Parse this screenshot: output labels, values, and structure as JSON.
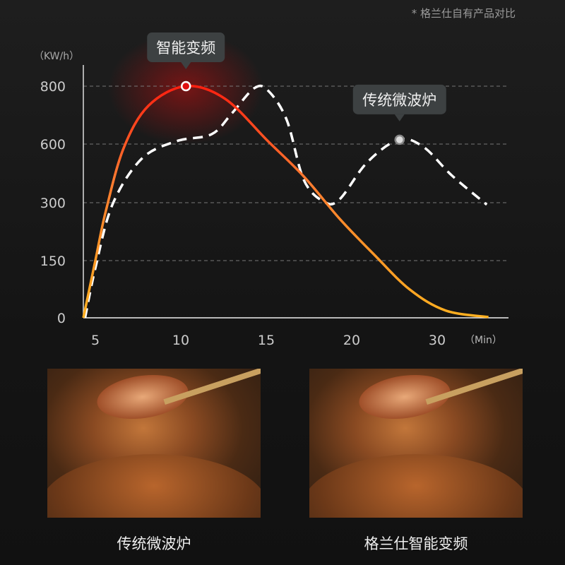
{
  "note": "* 格兰仕自有产品对比",
  "chart_data": {
    "type": "line",
    "ylabel": "（KW/h）",
    "xlabel": "（Min）",
    "y_ticks": [
      0,
      150,
      300,
      600,
      800
    ],
    "x_ticks": [
      5,
      10,
      15,
      20,
      30
    ],
    "grid": "horizontal dashed",
    "series": [
      {
        "name": "智能变频",
        "style": "solid gradient red-orange",
        "color": "#ff3a1a",
        "points": [
          [
            4.3,
            0
          ],
          [
            5,
            150
          ],
          [
            5.6,
            276
          ],
          [
            6.65,
            578
          ],
          [
            8.1,
            732
          ],
          [
            10.3,
            800
          ],
          [
            12.6,
            756
          ],
          [
            15.1,
            610
          ],
          [
            17.2,
            434
          ],
          [
            19.3,
            258
          ],
          [
            22.6,
            166
          ],
          [
            26.8,
            74
          ],
          [
            31,
            19
          ],
          [
            36,
            2
          ]
        ],
        "highlight": [
          10.3,
          800
        ]
      },
      {
        "name": "传统微波炉",
        "style": "dashed white",
        "color": "#ffffff",
        "points": [
          [
            4.4,
            0
          ],
          [
            5,
            130
          ],
          [
            6,
            295
          ],
          [
            7.7,
            524
          ],
          [
            9.75,
            610
          ],
          [
            11.8,
            634
          ],
          [
            13,
            707
          ],
          [
            14.3,
            793
          ],
          [
            15.1,
            785
          ],
          [
            16.2,
            683
          ],
          [
            17.2,
            416
          ],
          [
            18.4,
            304
          ],
          [
            19.3,
            318
          ],
          [
            21.8,
            506
          ],
          [
            25.5,
            615
          ],
          [
            28.4,
            585
          ],
          [
            31.7,
            440
          ],
          [
            35.8,
            295
          ]
        ],
        "highlight": [
          25.6,
          615
        ]
      }
    ]
  },
  "photos": [
    {
      "caption": "传统微波炉"
    },
    {
      "caption": "格兰仕智能变频"
    }
  ]
}
